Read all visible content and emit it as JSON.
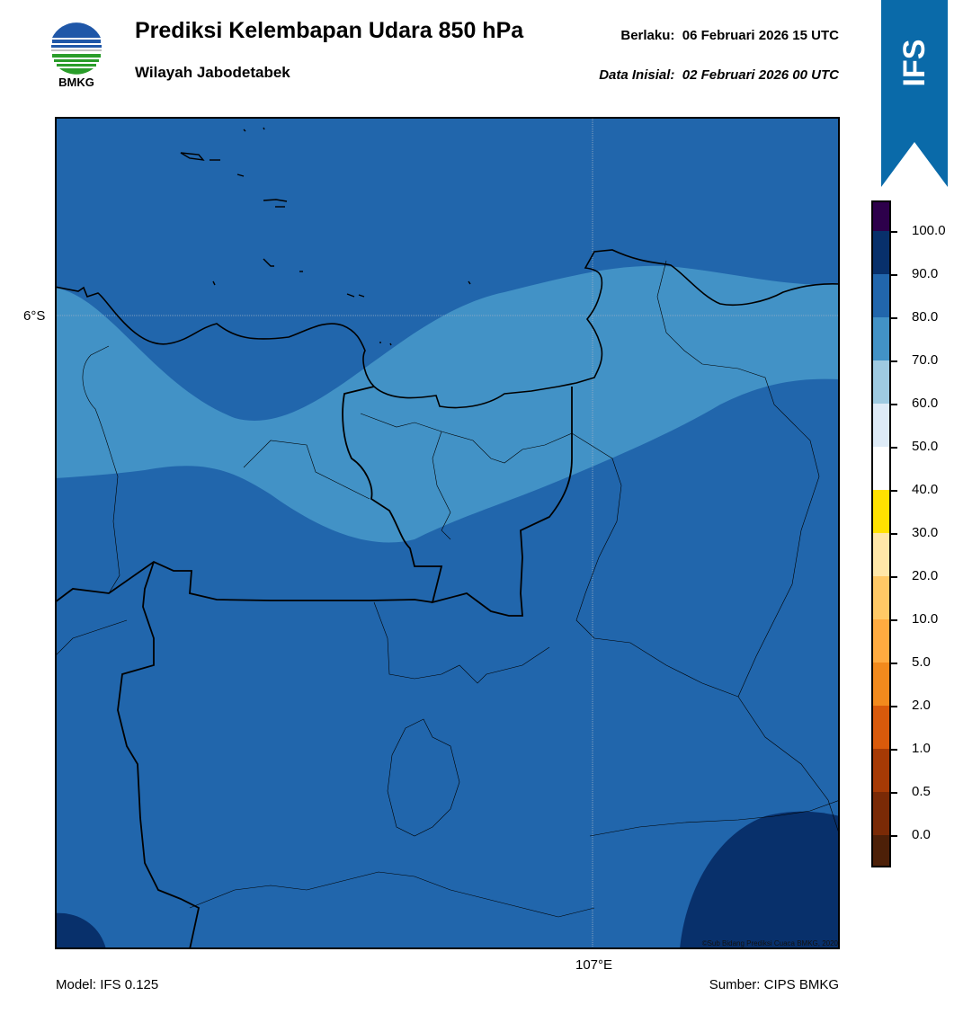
{
  "header": {
    "title": "Prediksi Kelembapan Udara 850 hPa",
    "subtitle": "Wilayah Jabodetabek",
    "valid_label": "Berlaku:",
    "valid_time": "06 Februari 2026 15 UTC",
    "init_label": "Data Inisial:",
    "init_time": "02 Februari 2026 00 UTC"
  },
  "logo": {
    "text": "BMKG",
    "icon": "bmkg-logo"
  },
  "ribbon": {
    "text": "IFS",
    "color": "#0a6aa9"
  },
  "map": {
    "lat_label": "6°S",
    "lon_label": "107°E",
    "credit": "©Sub Bidang Prediksi Cuaca BMKG, 2020",
    "fill_colors": {
      "band_70_80": "#4292c6",
      "band_80_90": "#2166ac",
      "band_90_100": "#08306b"
    }
  },
  "colorbar": {
    "ticks": [
      "100.0",
      "90.0",
      "80.0",
      "70.0",
      "60.0",
      "50.0",
      "40.0",
      "30.0",
      "20.0",
      "10.0",
      "5.0",
      "2.0",
      "1.0",
      "0.5",
      "0.0"
    ],
    "segments": [
      "#2d004b",
      "#08306b",
      "#2166ac",
      "#4292c6",
      "#9ecae1",
      "#deebf7",
      "#ffffff",
      "#ffe100",
      "#ffe7a8",
      "#ffc966",
      "#ffab40",
      "#f28a1d",
      "#d95a0b",
      "#a63a05",
      "#7a2a06",
      "#4d2008",
      "#b2141e",
      "#e8362c"
    ]
  },
  "footer": {
    "model": "Model: IFS 0.125",
    "source": "Sumber: CIPS BMKG"
  }
}
